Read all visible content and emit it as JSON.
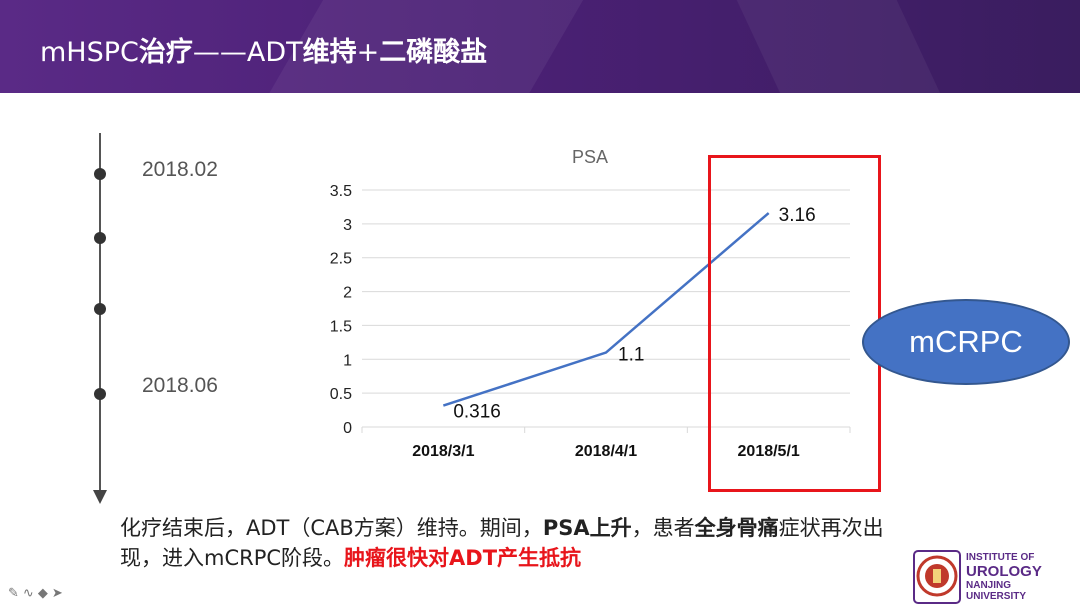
{
  "header": {
    "title_prefix": "mHSPC",
    "title_bold1": "治疗",
    "title_mid": "——ADT",
    "title_bold2": "维持",
    "title_plus": "+",
    "title_bold3": "二磷酸盐"
  },
  "timeline": {
    "date_top": "2018.02",
    "date_bottom": "2018.06"
  },
  "chart_data": {
    "type": "line",
    "title": "PSA",
    "categories": [
      "2018/3/1",
      "2018/4/1",
      "2018/5/1"
    ],
    "values": [
      0.316,
      1.1,
      3.16
    ],
    "data_labels": [
      "0.316",
      "1.1",
      "3.16"
    ],
    "y_ticks": [
      "0",
      "0.5",
      "1",
      "1.5",
      "2",
      "2.5",
      "3",
      "3.5"
    ],
    "ylim": [
      0,
      3.5
    ],
    "xlabel": "",
    "ylabel": "",
    "grid": true,
    "line_color": "#4472c4"
  },
  "callout": {
    "label": "mCRPC"
  },
  "description": {
    "part1": "化疗结束后，ADT（CAB方案）维持。期间，",
    "bold1": "PSA上升",
    "part2": "，患者",
    "bold2": "全身骨痛",
    "part3": "症状再次出现，进入mCRPC阶段。",
    "red": "肿瘤很快对ADT产生抵抗"
  },
  "logo": {
    "line1": "INSTITUTE OF",
    "line2": "UROLOGY",
    "line3": "NANJING",
    "line4": "UNIVERSITY"
  },
  "toolbar": {
    "icons": [
      "pen-icon",
      "scribble-icon",
      "eraser-icon",
      "pointer-icon"
    ]
  },
  "colors": {
    "header_bg": "#4b2075",
    "accent_red": "#e8151b",
    "bubble_blue": "#4472c4"
  }
}
